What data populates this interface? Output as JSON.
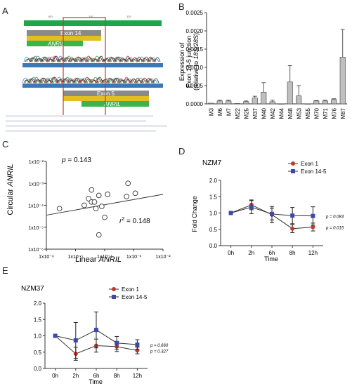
{
  "panel_labels": {
    "a": "A",
    "b": "B",
    "c": "C",
    "d": "D",
    "e": "E"
  },
  "panel_a": {
    "ruler_ticks": [
      "100",
      "110",
      "120"
    ],
    "exon_top": "Exon 14",
    "exon_bottom": "Exon 5",
    "gene": "ANRIL",
    "colors": {
      "ruler": "#1fa64a",
      "box": "#c0392b",
      "exon_bar": "#8a8a8a",
      "gene_bar": "#3cb44b"
    }
  },
  "chart_data": [
    {
      "id": "B",
      "type": "bar",
      "ylabel_line1": "Expression of",
      "ylabel_line2": "Exon 14-5 junction",
      "ylabel_line3_pre": "(relative to ",
      "ylabel_line3_ital": "18S/28S",
      "ylabel_line3_post": ")",
      "ylim": [
        0,
        0.0025
      ],
      "yticks": [
        "0.0000",
        "0.0005",
        "0.0010",
        "0.0015",
        "0.0020",
        "0.0025"
      ],
      "categories": [
        "M3",
        "M6",
        "M7",
        "M22",
        "M25",
        "M37",
        "M40",
        "M42",
        "M44",
        "M48",
        "M53",
        "M55",
        "M70",
        "M71",
        "M76",
        "M87"
      ],
      "values": [
        2e-05,
        8e-05,
        8e-05,
        1e-05,
        6e-05,
        0.00016,
        0.00032,
        6e-05,
        0.0,
        0.0006,
        0.00022,
        0.0,
        8e-05,
        8e-05,
        0.00012,
        0.00128
      ],
      "errors": [
        0.0,
        2e-05,
        2e-05,
        0.0,
        2e-05,
        5e-05,
        0.00026,
        4e-05,
        0.0,
        0.00045,
        0.00028,
        0.0,
        1e-05,
        2e-05,
        2e-05,
        0.00076
      ]
    },
    {
      "id": "C",
      "type": "scatter",
      "xlabel_pre": "Linear ",
      "xlabel_ital": "ANRIL",
      "ylabel_pre": "Circular ",
      "ylabel_ital": "ANRIL",
      "x_tick_labels": [
        "1x10⁻⁶",
        "1x10⁻⁵",
        "1x10⁻⁴",
        "1x10⁻³",
        "1x10⁻²"
      ],
      "y_tick_labels": [
        "1x10⁻⁶",
        "1x10⁻⁵",
        "1x10⁻⁴",
        "1x10⁻³",
        "1x10⁻²"
      ],
      "xlim_log": [
        -6,
        -2
      ],
      "ylim_log": [
        -6,
        -2
      ],
      "x": [
        -5.55,
        -4.7,
        -4.55,
        -4.45,
        -4.2,
        -4.35,
        -4.3,
        -4.1,
        -4.0,
        -3.9,
        -4.45,
        -3.25,
        -3.2,
        -2.95,
        -4.2
      ],
      "y": [
        -4.15,
        -4.0,
        -3.7,
        -3.85,
        -3.55,
        -3.85,
        -4.15,
        -4.05,
        -4.55,
        -3.5,
        -3.3,
        -3.6,
        -3.0,
        -3.45,
        -5.35
      ],
      "fit_line": {
        "x": [
          -6,
          -2
        ],
        "y": [
          -4.45,
          -3.5
        ]
      },
      "p_label": "p",
      "p_value": " = 0.143",
      "r_label": "r",
      "r_value": " = 0.148"
    },
    {
      "id": "D",
      "type": "line",
      "title": "NZM7",
      "ylabel": "Fold Change",
      "xlabel": "Time",
      "categories": [
        "0h",
        "2h",
        "6h",
        "8h",
        "12h"
      ],
      "yticks": [
        "0.0",
        "0.5",
        "1.0",
        "1.5",
        "2.0"
      ],
      "ylim": [
        0,
        2.0
      ],
      "series": [
        {
          "name": "Exon 1",
          "color": "#c0392b",
          "values": [
            1.0,
            1.25,
            0.95,
            0.52,
            0.57
          ],
          "errors": [
            0.0,
            0.15,
            0.25,
            0.12,
            0.12
          ],
          "p": "p = 0.015"
        },
        {
          "name": "Exon 14-5",
          "color": "#3b4aa8",
          "values": [
            1.0,
            1.18,
            0.97,
            0.92,
            0.91
          ],
          "errors": [
            0.0,
            0.2,
            0.18,
            0.25,
            0.28
          ],
          "p": "p = 0.083"
        }
      ]
    },
    {
      "id": "E",
      "type": "line",
      "title": "NZM37",
      "ylabel": "",
      "xlabel": "Time",
      "categories": [
        "0h",
        "2h",
        "6h",
        "8h",
        "12h"
      ],
      "yticks": [
        "0.0",
        "0.5",
        "1.0",
        "1.5",
        "2.0"
      ],
      "ylim": [
        0,
        2.0
      ],
      "series": [
        {
          "name": "Exon 1",
          "color": "#c0392b",
          "values": [
            1.0,
            0.45,
            0.7,
            0.67,
            0.55
          ],
          "errors": [
            0.0,
            0.2,
            0.2,
            0.15,
            0.1
          ],
          "p": "p = 0.327"
        },
        {
          "name": "Exon 14-5",
          "color": "#3b4aa8",
          "values": [
            1.0,
            0.86,
            1.18,
            0.78,
            0.73
          ],
          "errors": [
            0.0,
            0.55,
            0.55,
            0.2,
            0.15
          ],
          "p": "p = 0.660"
        }
      ]
    }
  ]
}
